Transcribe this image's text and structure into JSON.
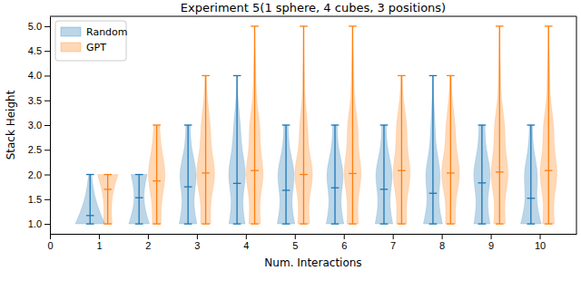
{
  "chart_data": {
    "type": "violin",
    "title": "Experiment 5(1 sphere, 4 cubes, 3 positions)",
    "x_label": "Num. Interactions",
    "y_label": "Stack Height",
    "x": [
      1,
      2,
      3,
      4,
      5,
      6,
      7,
      8,
      9,
      10
    ],
    "xlim": [
      0,
      10.75
    ],
    "xticks": [
      0,
      1,
      2,
      3,
      4,
      5,
      6,
      7,
      8,
      9,
      10
    ],
    "ylim": [
      0.8,
      5.2
    ],
    "yticks": [
      {
        "value": 1.0,
        "label": "1.0"
      },
      {
        "value": 1.5,
        "label": "1.5"
      },
      {
        "value": 2.0,
        "label": "2.0"
      },
      {
        "value": 2.5,
        "label": "2.5"
      },
      {
        "value": 3.0,
        "label": "3.0"
      },
      {
        "value": 3.5,
        "label": "3.5"
      },
      {
        "value": 4.0,
        "label": "4.0"
      },
      {
        "value": 4.5,
        "label": "4.5"
      },
      {
        "value": 5.0,
        "label": "5.0"
      }
    ],
    "legend": "upper left",
    "grid": false,
    "density_y": [
      1.0,
      1.5,
      2.0,
      2.5,
      3.0,
      3.5,
      4.0,
      4.5,
      5.0
    ],
    "series": [
      {
        "name": "Random",
        "color": "#1f77b4",
        "values": [
          1.17,
          1.53,
          1.75,
          1.82,
          1.68,
          1.73,
          1.7,
          1.62,
          1.83,
          1.52
        ],
        "mins": [
          1,
          1,
          1,
          1,
          1,
          1,
          1,
          1,
          1,
          1
        ],
        "maxs": [
          2,
          2,
          3,
          4,
          3,
          3,
          3,
          4,
          3,
          3
        ],
        "density": [
          [
            1.0,
            0.3,
            0.1,
            null,
            null,
            null,
            null,
            null,
            null
          ],
          [
            0.7,
            0.2,
            0.55,
            null,
            null,
            null,
            null,
            null,
            null
          ],
          [
            0.6,
            0.3,
            0.7,
            0.2,
            0.15,
            null,
            null,
            null,
            null
          ],
          [
            0.55,
            0.3,
            0.7,
            0.3,
            0.25,
            0.05,
            0.02,
            null,
            null
          ],
          [
            0.6,
            0.3,
            0.7,
            0.2,
            0.15,
            null,
            null,
            null,
            null
          ],
          [
            0.6,
            0.3,
            0.7,
            0.2,
            0.15,
            null,
            null,
            null,
            null
          ],
          [
            0.6,
            0.3,
            0.7,
            0.2,
            0.15,
            null,
            null,
            null,
            null
          ],
          [
            0.65,
            0.3,
            0.6,
            0.2,
            0.15,
            0.05,
            0.02,
            null,
            null
          ],
          [
            0.55,
            0.3,
            0.7,
            0.25,
            0.2,
            null,
            null,
            null,
            null
          ],
          [
            0.7,
            0.3,
            0.55,
            0.15,
            0.1,
            null,
            null,
            null,
            null
          ]
        ]
      },
      {
        "name": "GPT",
        "color": "#ff7f0e",
        "values": [
          1.7,
          1.87,
          2.03,
          2.08,
          2.0,
          2.02,
          2.08,
          2.03,
          2.05,
          2.08
        ],
        "mins": [
          1,
          1,
          1,
          1,
          1,
          1,
          1,
          1,
          1,
          1
        ],
        "maxs": [
          2,
          3,
          4,
          5,
          5,
          5,
          4,
          4,
          5,
          5
        ],
        "density": [
          [
            0.3,
            0.2,
            0.7,
            null,
            null,
            null,
            null,
            null,
            null
          ],
          [
            0.3,
            0.3,
            0.7,
            0.3,
            0.2,
            null,
            null,
            null,
            null
          ],
          [
            0.35,
            0.3,
            0.75,
            0.35,
            0.35,
            0.1,
            0.05,
            null,
            null
          ],
          [
            0.4,
            0.3,
            0.7,
            0.35,
            0.4,
            0.1,
            0.1,
            0.03,
            0.02
          ],
          [
            0.4,
            0.3,
            0.75,
            0.3,
            0.3,
            0.08,
            0.06,
            0.03,
            0.02
          ],
          [
            0.4,
            0.3,
            0.7,
            0.35,
            0.4,
            0.1,
            0.1,
            0.03,
            0.02
          ],
          [
            0.35,
            0.3,
            0.7,
            0.35,
            0.4,
            0.1,
            0.05,
            null,
            null
          ],
          [
            0.35,
            0.3,
            0.75,
            0.35,
            0.35,
            0.1,
            0.05,
            null,
            null
          ],
          [
            0.4,
            0.3,
            0.7,
            0.35,
            0.4,
            0.1,
            0.08,
            0.03,
            0.02
          ],
          [
            0.4,
            0.3,
            0.7,
            0.35,
            0.4,
            0.1,
            0.1,
            0.03,
            0.02
          ]
        ]
      }
    ]
  }
}
